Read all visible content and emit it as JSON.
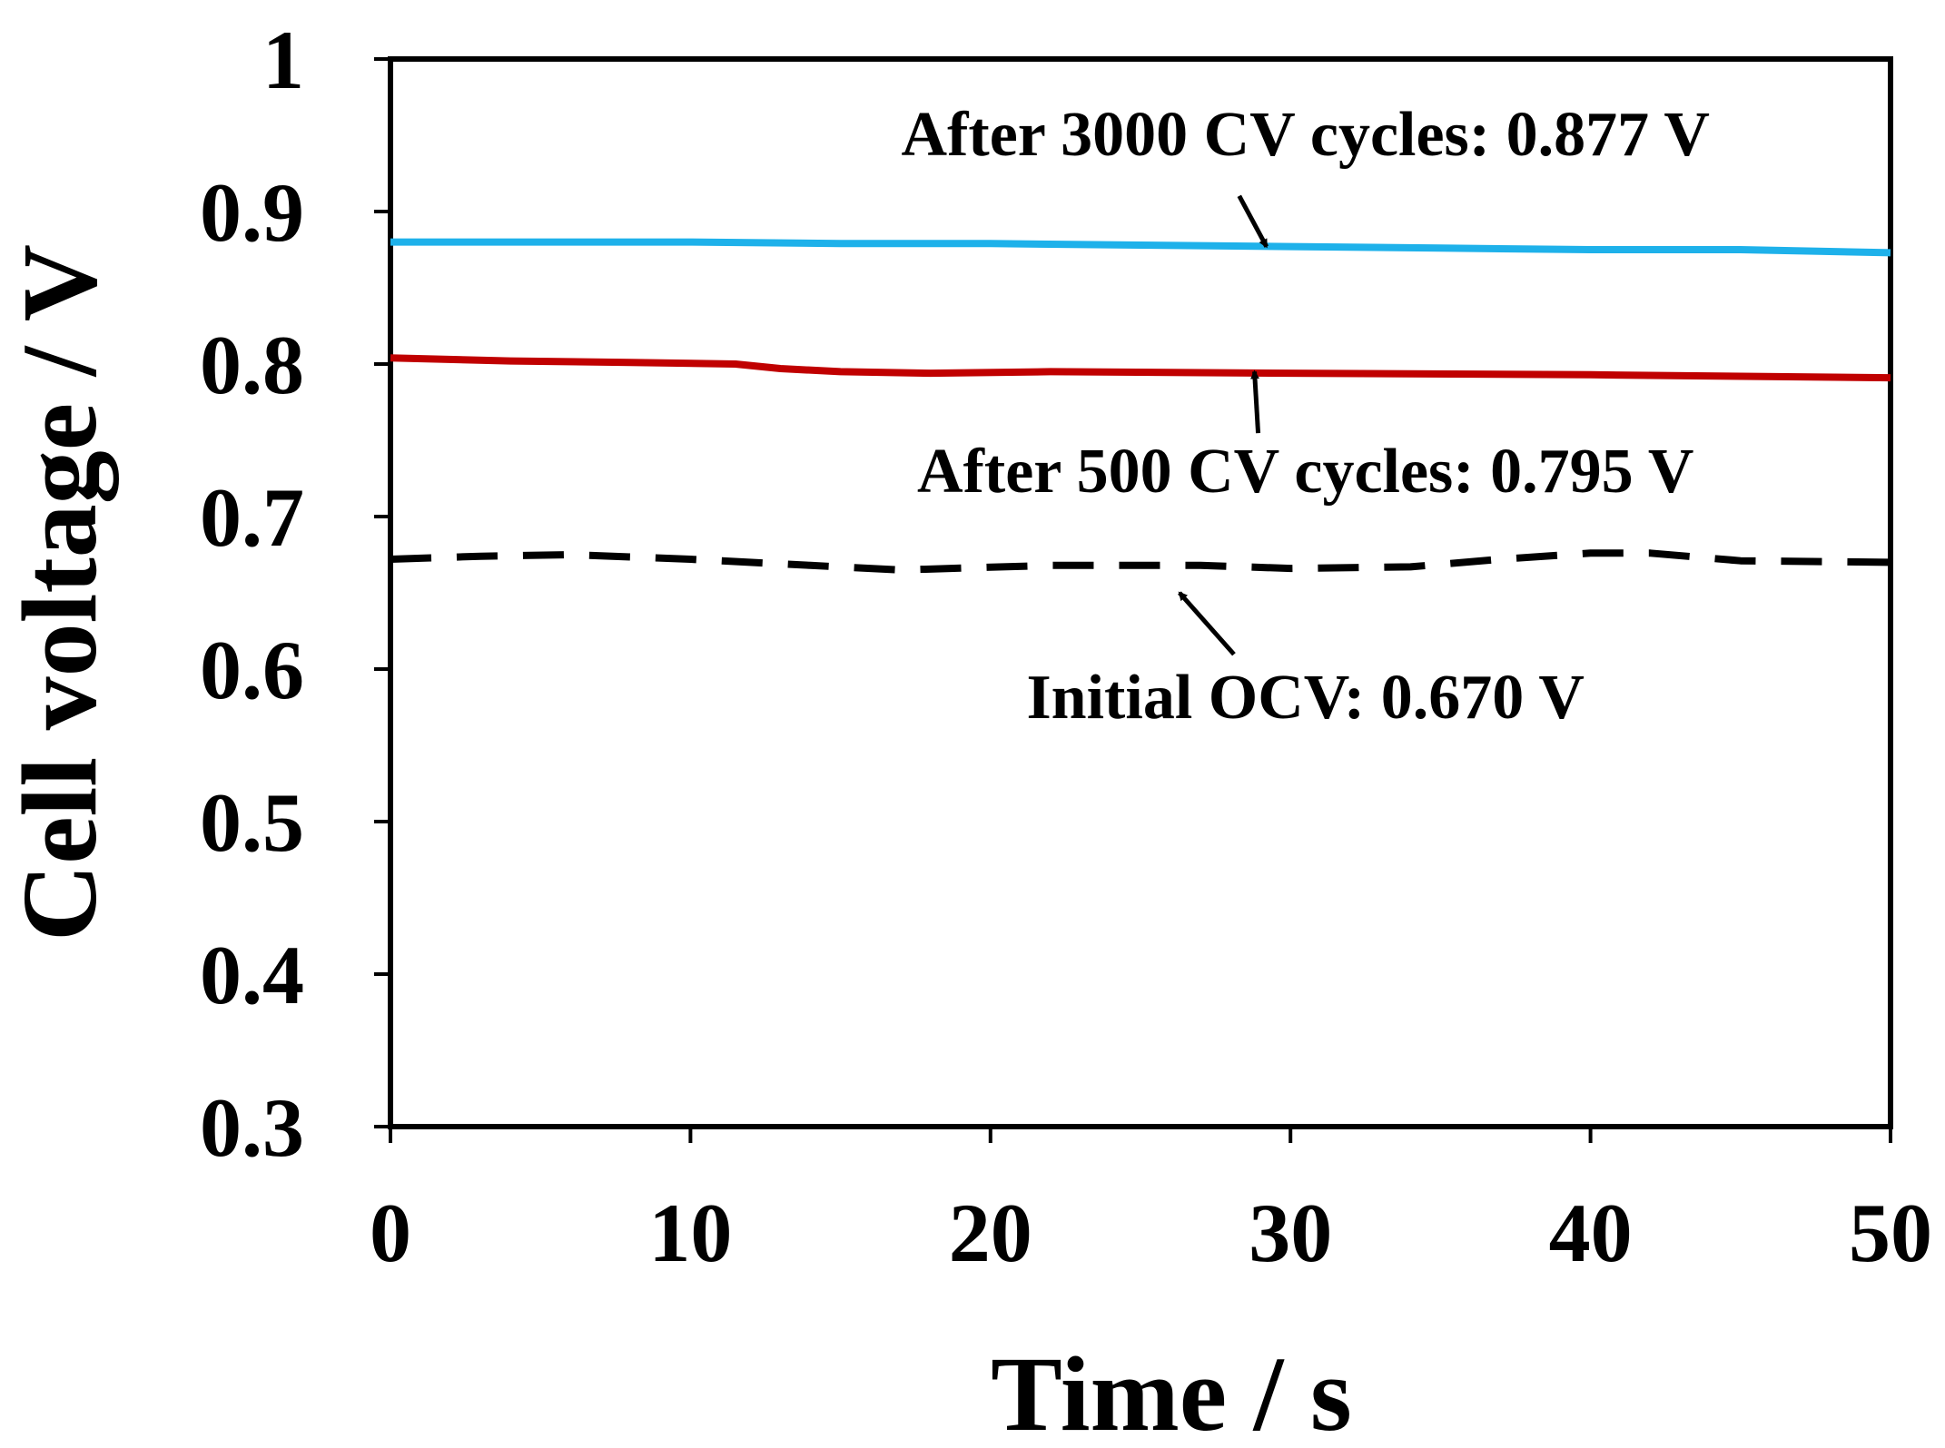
{
  "chart_data": {
    "type": "line",
    "title": "",
    "xlabel": "Time / s",
    "ylabel": "Cell voltage / V",
    "xlim": [
      0,
      50
    ],
    "ylim": [
      0.3,
      1.0
    ],
    "grid": false,
    "x_ticks": [
      "0",
      "10",
      "20",
      "30",
      "40",
      "50"
    ],
    "y_ticks": [
      "0.3",
      "0.4",
      "0.5",
      "0.6",
      "0.7",
      "0.8",
      "0.9",
      "1"
    ],
    "series": [
      {
        "name": "After 3000 CV cycles",
        "color": "#1eb1ea",
        "style": "solid",
        "x": [
          0,
          5,
          10,
          15,
          20,
          25,
          30,
          35,
          40,
          45,
          50
        ],
        "y": [
          0.88,
          0.88,
          0.88,
          0.879,
          0.879,
          0.878,
          0.877,
          0.876,
          0.875,
          0.875,
          0.873
        ]
      },
      {
        "name": "After 500 CV cycles",
        "color": "#c00000",
        "style": "solid",
        "x": [
          0,
          4,
          8,
          11.5,
          13,
          15,
          18,
          22,
          30,
          40,
          50
        ],
        "y": [
          0.804,
          0.802,
          0.801,
          0.8,
          0.797,
          0.795,
          0.794,
          0.795,
          0.794,
          0.793,
          0.791
        ]
      },
      {
        "name": "Initial OCV",
        "color": "#000000",
        "style": "dashed",
        "x": [
          0,
          3,
          6,
          10,
          14,
          17,
          22,
          27,
          30,
          34,
          37,
          40,
          42,
          45,
          50
        ],
        "y": [
          0.672,
          0.674,
          0.675,
          0.672,
          0.668,
          0.665,
          0.668,
          0.668,
          0.666,
          0.667,
          0.672,
          0.676,
          0.676,
          0.671,
          0.67
        ]
      }
    ],
    "annotations": [
      {
        "text": "After 3000 CV cycles: 0.877 V",
        "tip_x": 29.2,
        "tip_y": 0.877,
        "label_x": 30.5,
        "label_y": 0.937
      },
      {
        "text": "After 500 CV cycles: 0.795 V",
        "tip_x": 28.8,
        "tip_y": 0.795,
        "label_x": 30.5,
        "label_y": 0.716
      },
      {
        "text": "Initial OCV: 0.670 V",
        "tip_x": 26.3,
        "tip_y": 0.65,
        "label_x": 30.5,
        "label_y": 0.568
      }
    ]
  }
}
